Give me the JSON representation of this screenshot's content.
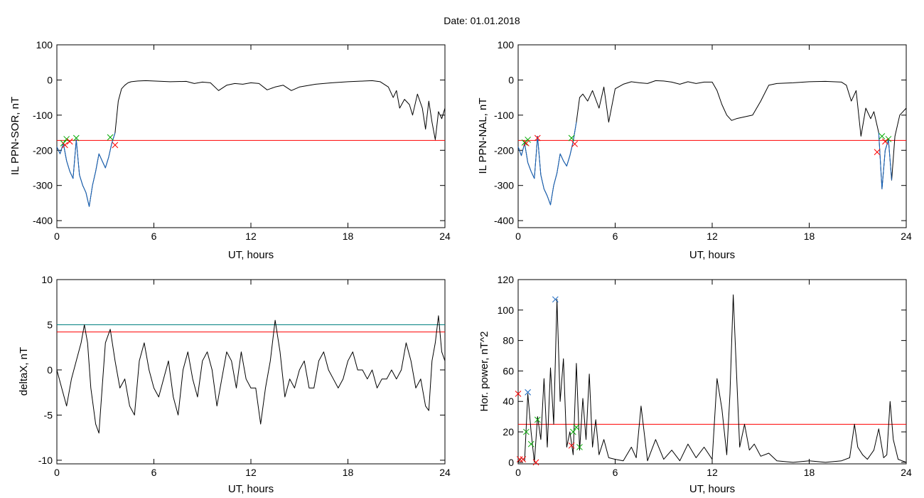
{
  "figure": {
    "title": "Date:  01.01.2018"
  },
  "chart_data": [
    {
      "id": "p1",
      "type": "line",
      "title": "",
      "xlabel": "UT, hours",
      "ylabel": "IL PPN-SOR, nT",
      "xlim": [
        0,
        24
      ],
      "ylim": [
        -420,
        100
      ],
      "xticks": [
        0,
        6,
        12,
        18,
        24
      ],
      "yticks": [
        -400,
        -300,
        -200,
        -100,
        0,
        100
      ],
      "grid": false,
      "hlines": [
        {
          "y": -172,
          "color": "#ff0000"
        }
      ],
      "series": [
        {
          "color": "#000000",
          "x": [
            0,
            0.2,
            0.4,
            0.6,
            0.8,
            1.0,
            1.2,
            1.4,
            1.6,
            1.8,
            2.0,
            2.2,
            2.4,
            2.6,
            2.8,
            3.0,
            3.2,
            3.4,
            3.6,
            3.8,
            4.0,
            4.2,
            4.4,
            4.6,
            5.0,
            5.5,
            6,
            7,
            8,
            8.5,
            9,
            9.5,
            10,
            10.5,
            11,
            11.5,
            12,
            12.5,
            13,
            13.5,
            14,
            14.5,
            15,
            16,
            17,
            18,
            19,
            19.5,
            20,
            20.5,
            20.8,
            21,
            21.2,
            21.5,
            21.8,
            22,
            22.3,
            22.6,
            22.8,
            23,
            23.2,
            23.4,
            23.6,
            23.8,
            24
          ],
          "y": [
            -190,
            -210,
            -180,
            -230,
            -260,
            -280,
            -170,
            -270,
            -300,
            -320,
            -360,
            -300,
            -260,
            -210,
            -230,
            -250,
            -220,
            -180,
            -150,
            -60,
            -25,
            -15,
            -8,
            -5,
            -3,
            -2,
            -3,
            -5,
            -4,
            -10,
            -6,
            -8,
            -30,
            -15,
            -10,
            -12,
            -8,
            -10,
            -28,
            -20,
            -15,
            -30,
            -20,
            -12,
            -8,
            -5,
            -3,
            -2,
            -5,
            -20,
            -50,
            -30,
            -80,
            -55,
            -70,
            -100,
            -40,
            -80,
            -140,
            -60,
            -120,
            -170,
            -90,
            -110,
            -80
          ]
        },
        {
          "color": "#1565c0",
          "x": [
            0,
            0.2,
            0.4,
            0.6,
            0.8,
            1.0,
            1.2,
            1.4,
            1.6,
            1.8,
            2.0,
            2.2,
            2.4,
            2.6,
            2.8,
            3.0,
            3.2,
            3.4,
            3.6
          ],
          "y": [
            -190,
            -210,
            -180,
            -230,
            -260,
            -280,
            -170,
            -270,
            -300,
            -320,
            -360,
            -300,
            -260,
            -210,
            -230,
            -250,
            -220,
            -180,
            -150
          ]
        }
      ],
      "markers": [
        {
          "x": 0.4,
          "y": -180,
          "color": "#00aa00"
        },
        {
          "x": 0.6,
          "y": -168,
          "color": "#00aa00"
        },
        {
          "x": 1.2,
          "y": -165,
          "color": "#00aa00"
        },
        {
          "x": 3.3,
          "y": -163,
          "color": "#00aa00"
        },
        {
          "x": 0.5,
          "y": -185,
          "color": "#ff0000"
        },
        {
          "x": 0.8,
          "y": -175,
          "color": "#ff0000"
        },
        {
          "x": 3.6,
          "y": -185,
          "color": "#ff0000"
        }
      ]
    },
    {
      "id": "p2",
      "type": "line",
      "title": "",
      "xlabel": "UT, hours",
      "ylabel": "IL PPN-NAL, nT",
      "xlim": [
        0,
        24
      ],
      "ylim": [
        -420,
        100
      ],
      "xticks": [
        0,
        6,
        12,
        18,
        24
      ],
      "yticks": [
        -400,
        -300,
        -200,
        -100,
        0,
        100
      ],
      "grid": false,
      "hlines": [
        {
          "y": -172,
          "color": "#ff0000"
        }
      ],
      "series": [
        {
          "color": "#000000",
          "x": [
            0,
            0.2,
            0.4,
            0.6,
            0.8,
            1.0,
            1.2,
            1.4,
            1.6,
            1.8,
            2.0,
            2.2,
            2.4,
            2.6,
            2.8,
            3.0,
            3.2,
            3.4,
            3.6,
            3.8,
            4.0,
            4.3,
            4.6,
            5.0,
            5.3,
            5.6,
            6.0,
            6.5,
            7.0,
            7.5,
            8,
            8.5,
            9,
            9.5,
            10,
            10.5,
            11,
            11.5,
            12,
            12.3,
            12.6,
            12.9,
            13.2,
            13.5,
            14,
            14.5,
            15,
            15.5,
            16,
            17,
            18,
            19,
            20,
            20.3,
            20.6,
            20.9,
            21.2,
            21.5,
            21.8,
            22,
            22.3,
            22.5,
            22.7,
            22.9,
            23.1,
            23.3,
            23.6,
            24
          ],
          "y": [
            -190,
            -215,
            -180,
            -235,
            -260,
            -280,
            -160,
            -270,
            -310,
            -330,
            -355,
            -300,
            -265,
            -210,
            -230,
            -245,
            -215,
            -175,
            -120,
            -50,
            -40,
            -60,
            -30,
            -80,
            -20,
            -120,
            -25,
            -12,
            -5,
            -8,
            -10,
            -2,
            -3,
            -6,
            -12,
            -5,
            -10,
            -6,
            -6,
            -30,
            -70,
            -100,
            -115,
            -110,
            -105,
            -100,
            -60,
            -15,
            -10,
            -8,
            -5,
            -4,
            -6,
            -15,
            -60,
            -30,
            -160,
            -80,
            -110,
            -90,
            -150,
            -310,
            -200,
            -170,
            -285,
            -160,
            -100,
            -80
          ]
        },
        {
          "color": "#1565c0",
          "x": [
            0,
            0.2,
            0.4,
            0.6,
            0.8,
            1.0,
            1.2,
            1.4,
            1.6,
            1.8,
            2.0,
            2.2,
            2.4,
            2.6,
            2.8,
            3.0,
            3.2,
            3.4,
            3.6
          ],
          "y": [
            -190,
            -215,
            -180,
            -235,
            -260,
            -280,
            -160,
            -270,
            -310,
            -330,
            -355,
            -300,
            -265,
            -210,
            -230,
            -245,
            -215,
            -175,
            -120
          ]
        },
        {
          "color": "#1565c0",
          "x": [
            22.3,
            22.5,
            22.7,
            22.9,
            23.1
          ],
          "y": [
            -150,
            -310,
            -200,
            -170,
            -285
          ]
        }
      ],
      "markers": [
        {
          "x": 0.4,
          "y": -178,
          "color": "#00aa00"
        },
        {
          "x": 0.6,
          "y": -170,
          "color": "#00aa00"
        },
        {
          "x": 3.3,
          "y": -165,
          "color": "#00aa00"
        },
        {
          "x": 22.5,
          "y": -160,
          "color": "#00aa00"
        },
        {
          "x": 22.9,
          "y": -168,
          "color": "#00aa00"
        },
        {
          "x": 0.5,
          "y": -180,
          "color": "#ff0000"
        },
        {
          "x": 1.2,
          "y": -165,
          "color": "#ff0000"
        },
        {
          "x": 3.5,
          "y": -182,
          "color": "#ff0000"
        },
        {
          "x": 22.2,
          "y": -205,
          "color": "#ff0000"
        },
        {
          "x": 22.7,
          "y": -175,
          "color": "#ff0000"
        }
      ]
    },
    {
      "id": "p3",
      "type": "line",
      "title": "",
      "xlabel": "UT, hours",
      "ylabel": "deltaX, nT",
      "xlim": [
        0,
        24
      ],
      "ylim": [
        -10.4,
        10
      ],
      "xticks": [
        0,
        6,
        12,
        18,
        24
      ],
      "yticks": [
        -10,
        -5,
        0,
        5,
        10
      ],
      "grid": false,
      "hlines": [
        {
          "y": 5.0,
          "color": "#008080"
        },
        {
          "y": 4.2,
          "color": "#ff0000"
        }
      ],
      "series": [
        {
          "color": "#000000",
          "x": [
            0,
            0.3,
            0.6,
            0.9,
            1.2,
            1.5,
            1.7,
            1.9,
            2.1,
            2.4,
            2.6,
            2.8,
            3.0,
            3.3,
            3.6,
            3.9,
            4.2,
            4.5,
            4.8,
            5.1,
            5.4,
            5.7,
            6.0,
            6.3,
            6.6,
            6.9,
            7.2,
            7.5,
            7.8,
            8.1,
            8.4,
            8.7,
            9.0,
            9.3,
            9.6,
            9.9,
            10.2,
            10.5,
            10.8,
            11.1,
            11.4,
            11.7,
            12.0,
            12.3,
            12.6,
            12.9,
            13.2,
            13.5,
            13.8,
            14.1,
            14.4,
            14.7,
            15.0,
            15.3,
            15.6,
            15.9,
            16.2,
            16.5,
            16.8,
            17.1,
            17.4,
            17.7,
            18.0,
            18.3,
            18.6,
            18.9,
            19.2,
            19.5,
            19.8,
            20.1,
            20.4,
            20.7,
            21.0,
            21.3,
            21.6,
            21.9,
            22.2,
            22.5,
            22.8,
            23.0,
            23.2,
            23.4,
            23.6,
            23.8,
            24
          ],
          "y": [
            0,
            -2,
            -4,
            -1,
            1,
            3,
            5,
            3,
            -2,
            -6,
            -7,
            -2,
            3,
            4.5,
            1,
            -2,
            -1,
            -4,
            -5,
            1,
            3,
            0,
            -2,
            -3,
            -1,
            1,
            -3,
            -5,
            0,
            2,
            -1,
            -3,
            1,
            2,
            0,
            -4,
            -1,
            2,
            1,
            -2,
            2,
            -1,
            -2,
            -2,
            -6,
            -2,
            1,
            5.5,
            2,
            -3,
            -1,
            -2,
            0,
            1,
            -2,
            -2,
            1,
            2,
            0,
            -1,
            -2,
            -1,
            1,
            2,
            0,
            0,
            -1,
            0,
            -2,
            -1,
            -1,
            0,
            -1,
            0,
            3,
            1,
            -2,
            -1,
            -4,
            -4.5,
            1,
            3,
            6,
            2,
            1
          ]
        }
      ],
      "markers": []
    },
    {
      "id": "p4",
      "type": "line",
      "title": "",
      "xlabel": "UT, hours",
      "ylabel": "Hor. power, nT^2",
      "xlim": [
        0,
        24
      ],
      "ylim": [
        -1,
        120
      ],
      "xticks": [
        0,
        6,
        12,
        18,
        24
      ],
      "yticks": [
        0,
        20,
        40,
        60,
        80,
        100,
        120
      ],
      "grid": false,
      "hlines": [
        {
          "y": 25,
          "color": "#ff0000"
        }
      ],
      "series": [
        {
          "color": "#000000",
          "x": [
            0,
            0.2,
            0.4,
            0.6,
            0.8,
            1.0,
            1.2,
            1.4,
            1.6,
            1.8,
            2.0,
            2.2,
            2.4,
            2.6,
            2.8,
            3.0,
            3.2,
            3.4,
            3.6,
            3.8,
            4.0,
            4.2,
            4.4,
            4.6,
            4.8,
            5.0,
            5.3,
            5.6,
            6.0,
            6.5,
            7.0,
            7.3,
            7.6,
            8.0,
            8.5,
            9.0,
            9.5,
            10.0,
            10.5,
            11.0,
            11.5,
            12.0,
            12.3,
            12.6,
            12.9,
            13.1,
            13.3,
            13.5,
            13.7,
            14.0,
            14.3,
            14.6,
            15.0,
            15.5,
            16,
            17,
            18,
            19,
            20,
            20.5,
            20.8,
            21.0,
            21.3,
            21.6,
            22.0,
            22.3,
            22.6,
            22.8,
            23.0,
            23.2,
            23.5,
            24
          ],
          "y": [
            0,
            3,
            1,
            45,
            20,
            0,
            30,
            15,
            55,
            10,
            62,
            25,
            107,
            40,
            68,
            10,
            20,
            5,
            65,
            8,
            42,
            15,
            58,
            10,
            28,
            5,
            15,
            3,
            2,
            1,
            10,
            3,
            37,
            1,
            15,
            2,
            8,
            1,
            12,
            3,
            10,
            2,
            55,
            35,
            5,
            45,
            110,
            60,
            10,
            25,
            8,
            12,
            4,
            6,
            1,
            0,
            1,
            0,
            1,
            3,
            25,
            10,
            5,
            2,
            8,
            22,
            3,
            5,
            40,
            15,
            2,
            0
          ]
        }
      ],
      "markers": [
        {
          "x": 2.3,
          "y": 107,
          "color": "#1565c0"
        },
        {
          "x": 0.6,
          "y": 46,
          "color": "#1565c0"
        },
        {
          "x": 1.2,
          "y": 28,
          "color": "#00aa00"
        },
        {
          "x": 0.8,
          "y": 12,
          "color": "#00aa00"
        },
        {
          "x": 3.4,
          "y": 20,
          "color": "#00aa00"
        },
        {
          "x": 3.6,
          "y": 23,
          "color": "#00aa00"
        },
        {
          "x": 3.8,
          "y": 10,
          "color": "#00aa00"
        },
        {
          "x": 0.5,
          "y": 20,
          "color": "#00aa00"
        },
        {
          "x": 0.1,
          "y": 2,
          "color": "#ff0000"
        },
        {
          "x": 0.3,
          "y": 2,
          "color": "#ff0000"
        },
        {
          "x": 1.1,
          "y": 0,
          "color": "#ff0000"
        },
        {
          "x": 3.3,
          "y": 11,
          "color": "#ff0000"
        },
        {
          "x": 0.0,
          "y": 45,
          "color": "#ff0000"
        }
      ]
    }
  ]
}
